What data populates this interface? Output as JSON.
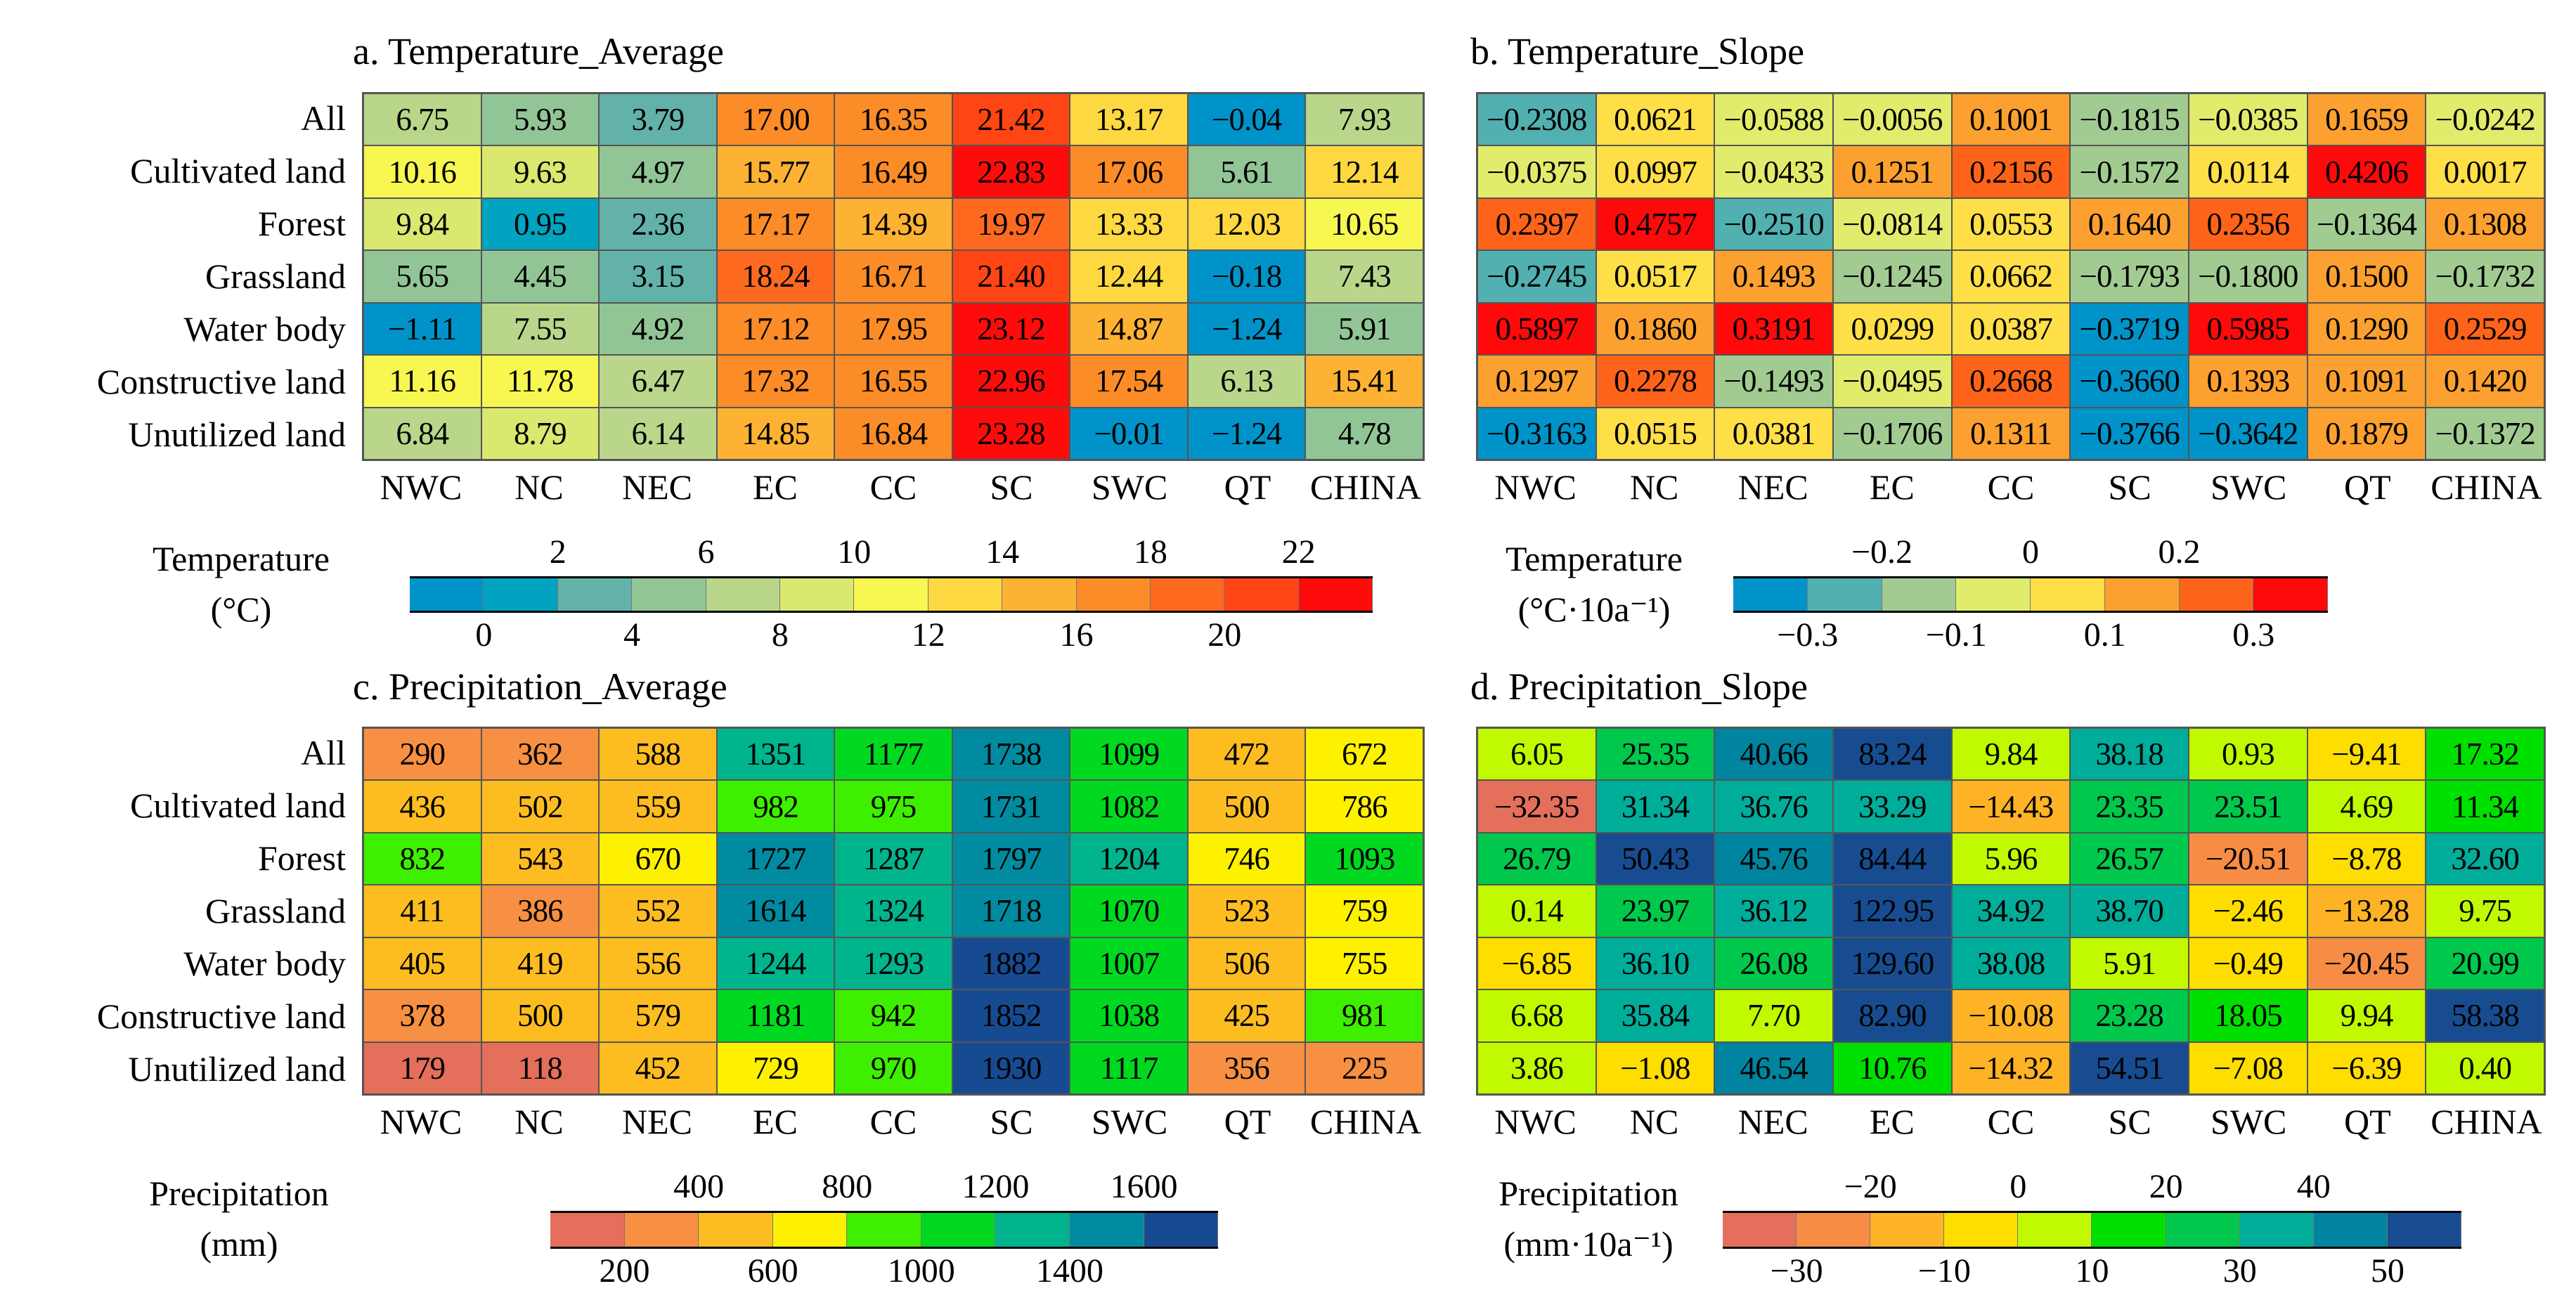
{
  "rows": [
    "All",
    "Cultivated land",
    "Forest",
    "Grassland",
    "Water body",
    "Constructive land",
    "Unutilized land"
  ],
  "cols": [
    "NWC",
    "NC",
    "NEC",
    "EC",
    "CC",
    "SC",
    "SWC",
    "QT",
    "CHINA"
  ],
  "chart_data": [
    {
      "type": "heatmap",
      "title": "a. Temperature_Average",
      "legend_title": "Temperature",
      "legend_unit": "(°C)",
      "ticks_top": [
        "2",
        "6",
        "10",
        "14",
        "18",
        "22"
      ],
      "ticks_bottom": [
        "0",
        "4",
        "8",
        "12",
        "16",
        "20"
      ],
      "thresholds": [
        0,
        2,
        4,
        6,
        8,
        10,
        12,
        14,
        16,
        18,
        20,
        22
      ],
      "colors": [
        "#0093c9",
        "#00a3c0",
        "#63b2aa",
        "#92c596",
        "#b9d68a",
        "#dbe870",
        "#f8f751",
        "#fdd840",
        "#fdb233",
        "#fb8c27",
        "#fe6920",
        "#fe4513",
        "#fe0c0c"
      ],
      "values": [
        [
          "6.75",
          "5.93",
          "3.79",
          "17.00",
          "16.35",
          "21.42",
          "13.17",
          "−0.04",
          "7.93"
        ],
        [
          "10.16",
          "9.63",
          "4.97",
          "15.77",
          "16.49",
          "22.83",
          "17.06",
          "5.61",
          "12.14"
        ],
        [
          "9.84",
          "0.95",
          "2.36",
          "17.17",
          "14.39",
          "19.97",
          "13.33",
          "12.03",
          "10.65"
        ],
        [
          "5.65",
          "4.45",
          "3.15",
          "18.24",
          "16.71",
          "21.40",
          "12.44",
          "−0.18",
          "7.43"
        ],
        [
          "−1.11",
          "7.55",
          "4.92",
          "17.12",
          "17.95",
          "23.12",
          "14.87",
          "−1.24",
          "5.91"
        ],
        [
          "11.16",
          "11.78",
          "6.47",
          "17.32",
          "16.55",
          "22.96",
          "17.54",
          "6.13",
          "15.41"
        ],
        [
          "6.84",
          "8.79",
          "6.14",
          "14.85",
          "16.84",
          "23.28",
          "−0.01",
          "−1.24",
          "4.78"
        ]
      ]
    },
    {
      "type": "heatmap",
      "title": "b. Temperature_Slope",
      "legend_title": "Temperature",
      "legend_unit": "(°C·10a⁻¹)",
      "ticks_top": [
        "−0.2",
        "0",
        "0.2"
      ],
      "ticks_bottom": [
        "−0.3",
        "−0.1",
        "0.1",
        "0.3"
      ],
      "thresholds": [
        -0.3,
        -0.2,
        -0.1,
        0,
        0.1,
        0.2,
        0.3
      ],
      "colors": [
        "#0093c9",
        "#52b0b0",
        "#a2cb92",
        "#e1ec6c",
        "#fedf48",
        "#fca030",
        "#fe6419",
        "#fe0a0a"
      ],
      "values": [
        [
          "−0.2308",
          "0.0621",
          "−0.0588",
          "−0.0056",
          "0.1001",
          "−0.1815",
          "−0.0385",
          "0.1659",
          "−0.0242"
        ],
        [
          "−0.0375",
          "0.0997",
          "−0.0433",
          "0.1251",
          "0.2156",
          "−0.1572",
          "0.0114",
          "0.4206",
          "0.0017"
        ],
        [
          "0.2397",
          "0.4757",
          "−0.2510",
          "−0.0814",
          "0.0553",
          "0.1640",
          "0.2356",
          "−0.1364",
          "0.1308"
        ],
        [
          "−0.2745",
          "0.0517",
          "0.1493",
          "−0.1245",
          "0.0662",
          "−0.1793",
          "−0.1800",
          "0.1500",
          "−0.1732"
        ],
        [
          "0.5897",
          "0.1860",
          "0.3191",
          "0.0299",
          "0.0387",
          "−0.3719",
          "0.5985",
          "0.1290",
          "0.2529"
        ],
        [
          "0.1297",
          "0.2278",
          "−0.1493",
          "−0.0495",
          "0.2668",
          "−0.3660",
          "0.1393",
          "0.1091",
          "0.1420"
        ],
        [
          "−0.3163",
          "0.0515",
          "0.0381",
          "−0.1706",
          "0.1311",
          "−0.3766",
          "−0.3642",
          "0.1879",
          "−0.1372"
        ]
      ]
    },
    {
      "type": "heatmap",
      "title": "c. Precipitation_Average",
      "legend_title": "Precipitation",
      "legend_unit": "(mm)",
      "ticks_top": [
        "400",
        "800",
        "1200",
        "1600"
      ],
      "ticks_bottom": [
        "200",
        "600",
        "1000",
        "1400"
      ],
      "thresholds": [
        200,
        400,
        600,
        800,
        1000,
        1200,
        1400,
        1800
      ],
      "colors": [
        "#e46f5a",
        "#f79042",
        "#fdbd21",
        "#fef100",
        "#3fef00",
        "#00d91f",
        "#00b48e",
        "#008ba0",
        "#174b91"
      ],
      "values": [
        [
          "290",
          "362",
          "588",
          "1351",
          "1177",
          "1738",
          "1099",
          "472",
          "672"
        ],
        [
          "436",
          "502",
          "559",
          "982",
          "975",
          "1731",
          "1082",
          "500",
          "786"
        ],
        [
          "832",
          "543",
          "670",
          "1727",
          "1287",
          "1797",
          "1204",
          "746",
          "1093"
        ],
        [
          "411",
          "386",
          "552",
          "1614",
          "1324",
          "1718",
          "1070",
          "523",
          "759"
        ],
        [
          "405",
          "419",
          "556",
          "1244",
          "1293",
          "1882",
          "1007",
          "506",
          "755"
        ],
        [
          "378",
          "500",
          "579",
          "1181",
          "942",
          "1852",
          "1038",
          "425",
          "981"
        ],
        [
          "179",
          "118",
          "452",
          "729",
          "970",
          "1930",
          "1117",
          "356",
          "225"
        ]
      ]
    },
    {
      "type": "heatmap",
      "title": "d. Precipitation_Slope",
      "legend_title": "Precipitation",
      "legend_unit": "(mm·10a⁻¹)",
      "ticks_top": [
        "−20",
        "0",
        "20",
        "40"
      ],
      "ticks_bottom": [
        "−30",
        "−10",
        "10",
        "30",
        "50"
      ],
      "thresholds": [
        -30,
        -20,
        -10,
        0,
        10,
        20,
        30,
        40,
        50
      ],
      "colors": [
        "#e4705b",
        "#f78d45",
        "#fdb325",
        "#fede00",
        "#c1f900",
        "#00e000",
        "#00c84c",
        "#00ad9a",
        "#00849f",
        "#174d90"
      ],
      "values": [
        [
          "6.05",
          "25.35",
          "40.66",
          "83.24",
          "9.84",
          "38.18",
          "0.93",
          "−9.41",
          "17.32"
        ],
        [
          "−32.35",
          "31.34",
          "36.76",
          "33.29",
          "−14.43",
          "23.35",
          "23.51",
          "4.69",
          "11.34"
        ],
        [
          "26.79",
          "50.43",
          "45.76",
          "84.44",
          "5.96",
          "26.57",
          "−20.51",
          "−8.78",
          "32.60"
        ],
        [
          "0.14",
          "23.97",
          "36.12",
          "122.95",
          "34.92",
          "38.70",
          "−2.46",
          "−13.28",
          "9.75"
        ],
        [
          "−6.85",
          "36.10",
          "26.08",
          "129.60",
          "38.08",
          "5.91",
          "−0.49",
          "−20.45",
          "20.99"
        ],
        [
          "6.68",
          "35.84",
          "7.70",
          "82.90",
          "−10.08",
          "23.28",
          "18.05",
          "9.94",
          "58.38"
        ],
        [
          "3.86",
          "−1.08",
          "46.54",
          "10.76",
          "−14.32",
          "54.51",
          "−7.08",
          "−6.39",
          "0.40"
        ]
      ]
    }
  ]
}
